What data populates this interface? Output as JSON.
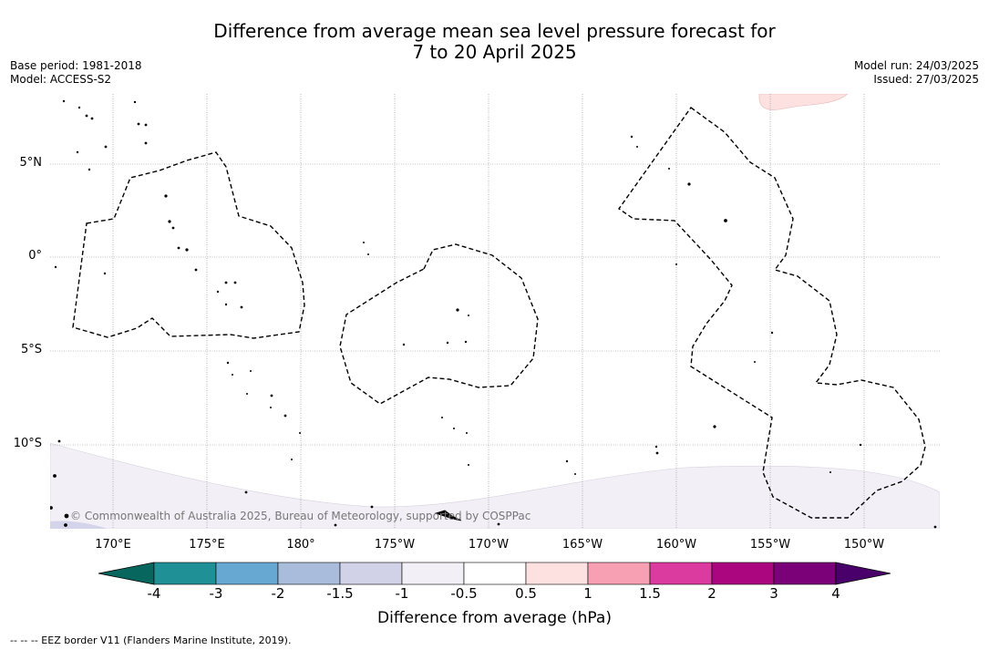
{
  "title": {
    "line1": "Difference from average mean sea level pressure forecast for",
    "line2": "7 to 20 April 2025"
  },
  "info_left": {
    "base_period": "Base period: 1981-2018",
    "model": "Model: ACCESS-S2"
  },
  "info_right": {
    "model_run": "Model run: 24/03/2025",
    "issued": "Issued: 27/03/2025"
  },
  "map": {
    "lon_labels": [
      "170°E",
      "175°E",
      "180°",
      "175°W",
      "170°W",
      "165°W",
      "160°W",
      "155°W",
      "150°W"
    ],
    "lat_labels": [
      "5°N",
      "0°",
      "5°S",
      "10°S"
    ],
    "copyright": "© Commonwealth of Australia 2025, Bureau of Meteorology, supported by COSPPac",
    "colors": {
      "anomaly_neg_0_5_to_1": "#f3eff6",
      "anomaly_neg_1_to_1_5": "#d3d4e9",
      "anomaly_pos_0_5_to_1": "#fde0e0"
    }
  },
  "colorbar": {
    "title": "Difference from average (hPa)",
    "ticks": [
      "-4",
      "-3",
      "-2",
      "-1.5",
      "-1",
      "-0.5",
      "0.5",
      "1",
      "1.5",
      "2",
      "3",
      "4"
    ],
    "colors": [
      "#07675e",
      "#1f9096",
      "#67a8d3",
      "#a9bcdc",
      "#d1d1e7",
      "#f3eff6",
      "#ffffff",
      "#fde0e0",
      "#f7a0b4",
      "#db3a9e",
      "#ac0580",
      "#7a0177",
      "#4a006a"
    ]
  },
  "footer": {
    "eez_note": "--  --  -- EEZ border V11 (Flanders Marine Institute, 2019)."
  }
}
